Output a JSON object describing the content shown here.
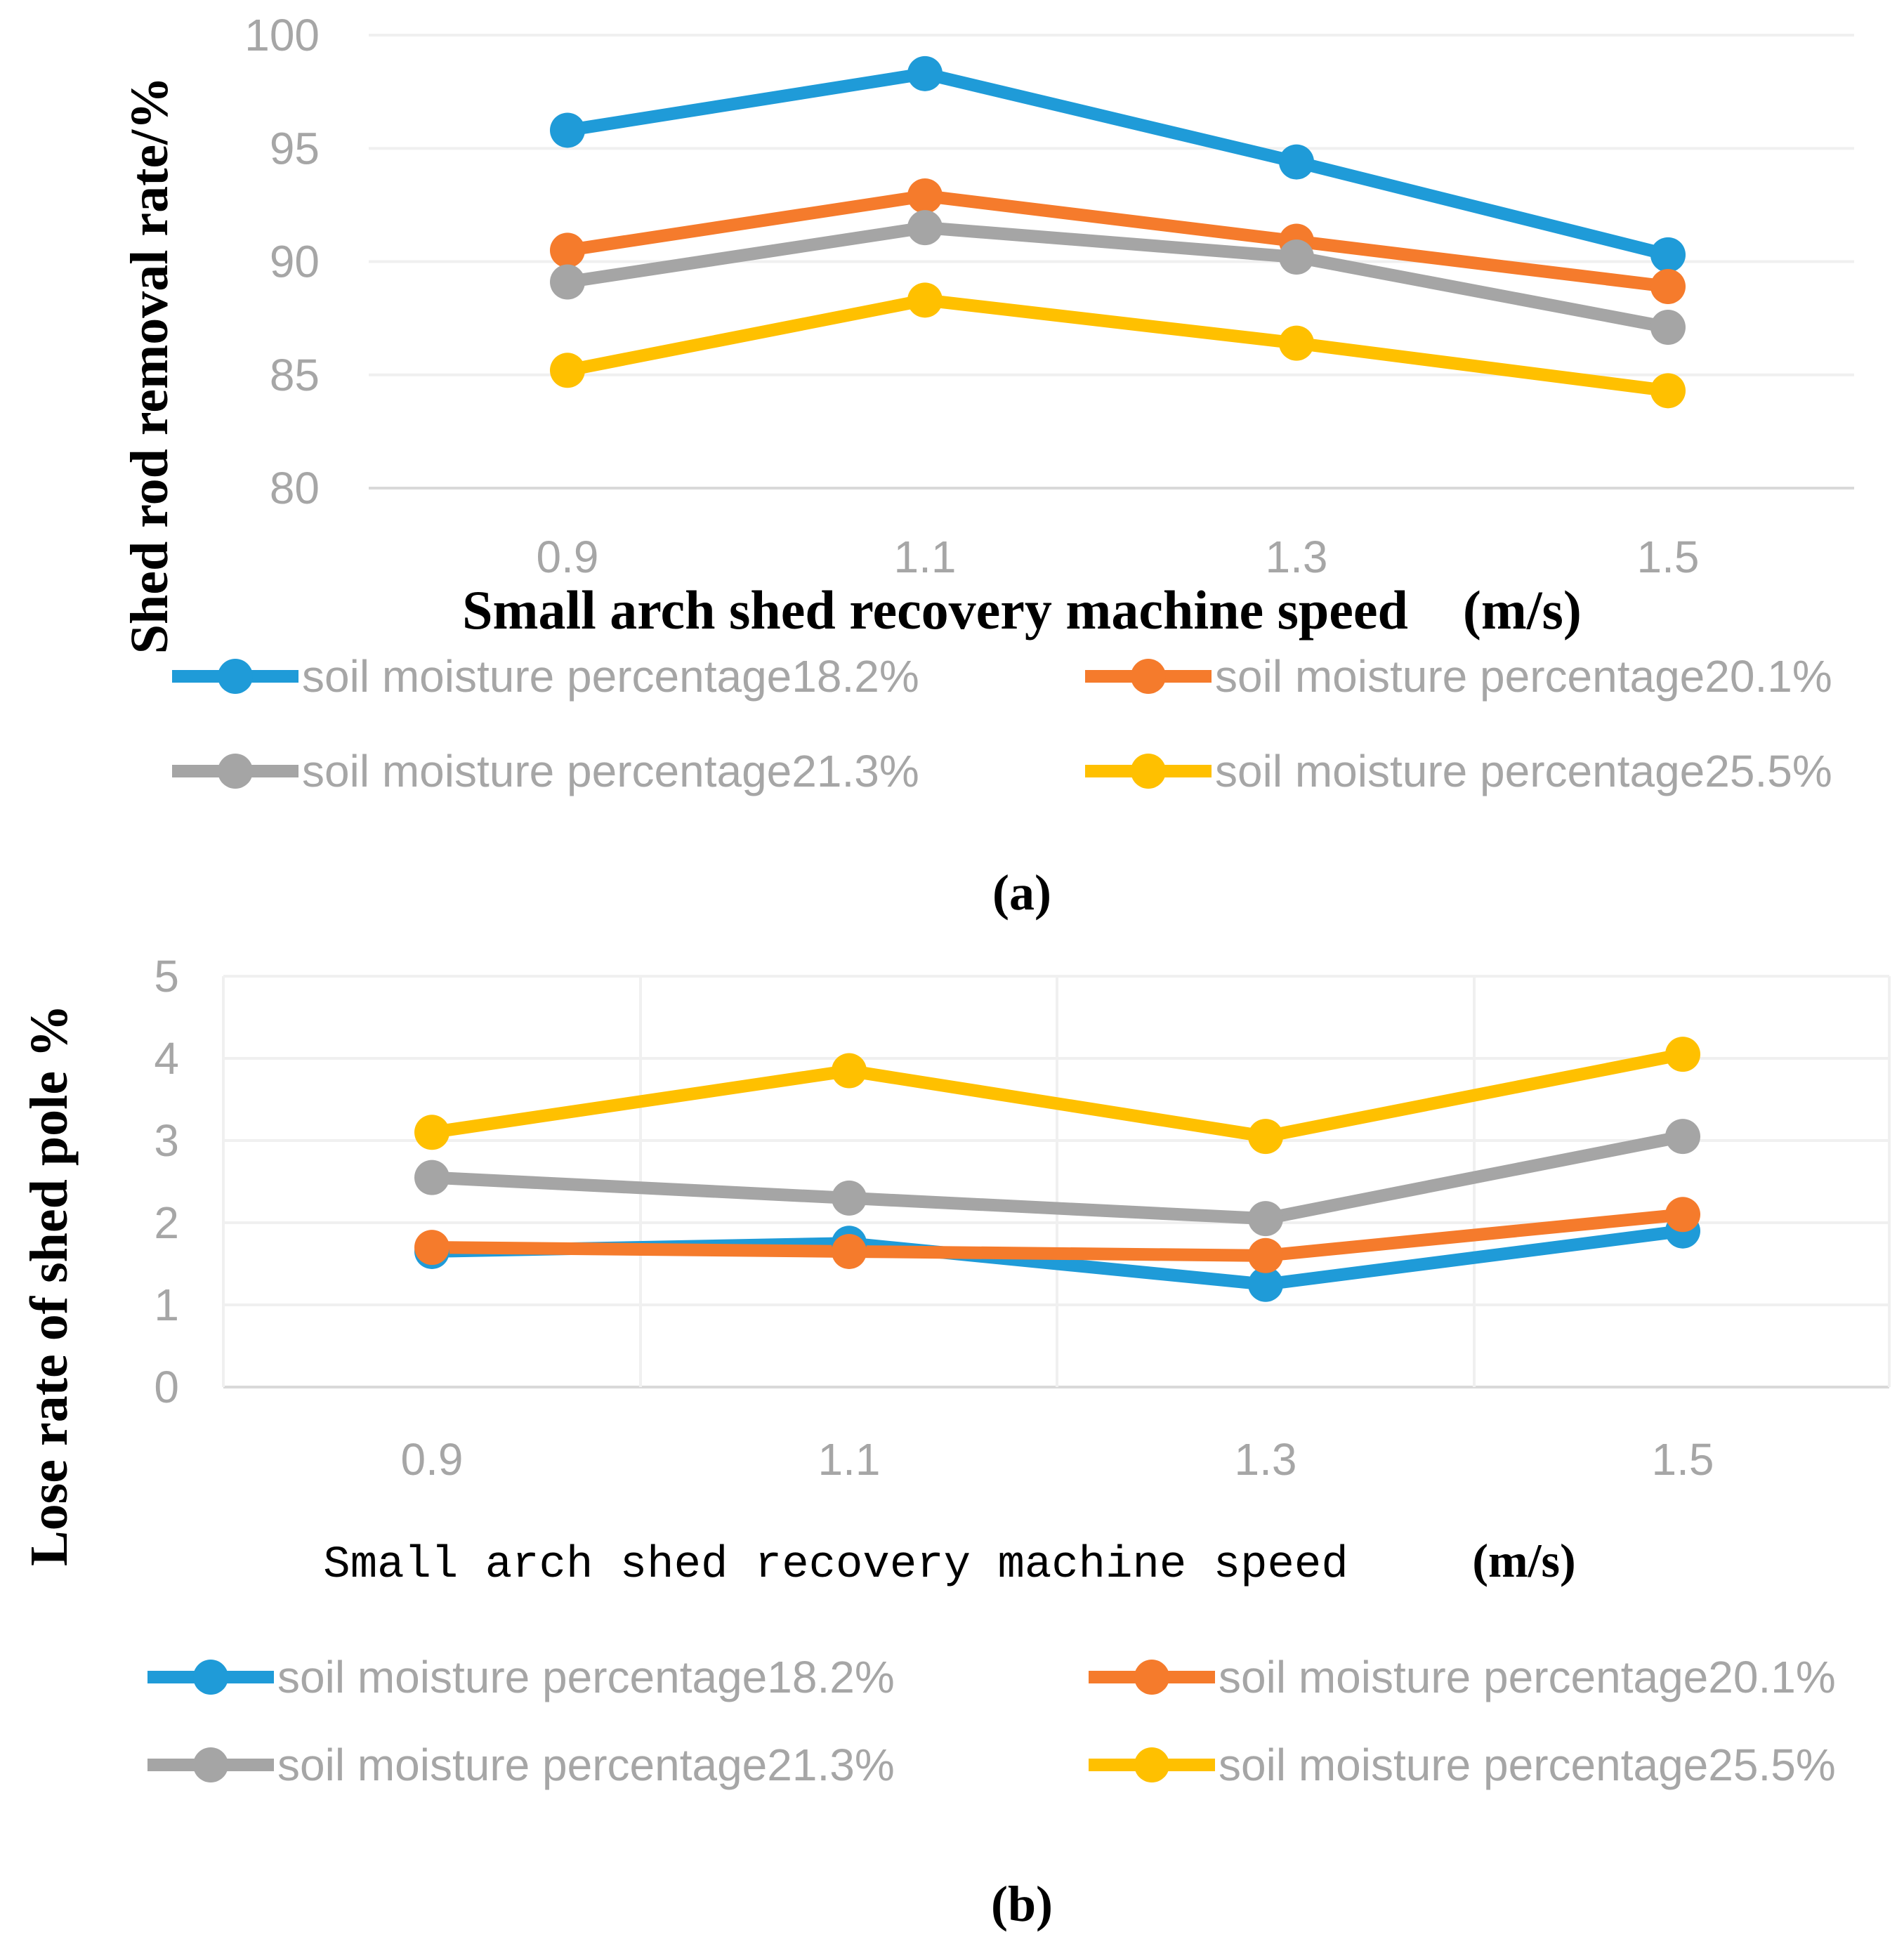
{
  "chart_data": [
    {
      "type": "line",
      "panel_label": "(a)",
      "title": "",
      "xlabel": "Small arch shed recovery machine speed　(m/s)",
      "ylabel": "Shed rod removal rate/%",
      "categories": [
        "0.9",
        "1.1",
        "1.3",
        "1.5"
      ],
      "ylim": [
        80,
        100
      ],
      "yticks": [
        "80",
        "85",
        "90",
        "95",
        "100"
      ],
      "grid": "horizontal",
      "legend_position": "bottom",
      "series": [
        {
          "name": "soil moisture percentage18.2%",
          "color": "#1f9bd8",
          "values": [
            95.8,
            98.3,
            94.4,
            90.3
          ]
        },
        {
          "name": "soil moisture percentage20.1%",
          "color": "#f57b2c",
          "values": [
            90.5,
            92.9,
            90.9,
            88.9
          ]
        },
        {
          "name": "soil moisture percentage21.3%",
          "color": "#a5a5a5",
          "values": [
            89.1,
            91.5,
            90.2,
            87.1
          ]
        },
        {
          "name": "soil moisture percentage25.5%",
          "color": "#ffc000",
          "values": [
            85.2,
            88.3,
            86.4,
            84.3
          ]
        }
      ]
    },
    {
      "type": "line",
      "panel_label": "(b)",
      "title": "",
      "xlabel": "Small arch shed recovery machine speed",
      "xlabel_unit": "(m/s)",
      "ylabel": "Lose rate of shed pole %",
      "categories": [
        "0.9",
        "1.1",
        "1.3",
        "1.5"
      ],
      "ylim": [
        0,
        5
      ],
      "yticks": [
        "0",
        "1",
        "2",
        "3",
        "4",
        "5"
      ],
      "grid": "both",
      "legend_position": "bottom",
      "series": [
        {
          "name": "soil moisture percentage18.2%",
          "color": "#1f9bd8",
          "values": [
            1.65,
            1.75,
            1.25,
            1.9
          ]
        },
        {
          "name": "soil moisture percentage20.1%",
          "color": "#f57b2c",
          "values": [
            1.7,
            1.65,
            1.6,
            2.1
          ]
        },
        {
          "name": "soil moisture percentage21.3%",
          "color": "#a5a5a5",
          "values": [
            2.55,
            2.3,
            2.05,
            3.05
          ]
        },
        {
          "name": "soil moisture percentage25.5%",
          "color": "#ffc000",
          "values": [
            3.1,
            3.85,
            3.05,
            4.05
          ]
        }
      ]
    }
  ]
}
